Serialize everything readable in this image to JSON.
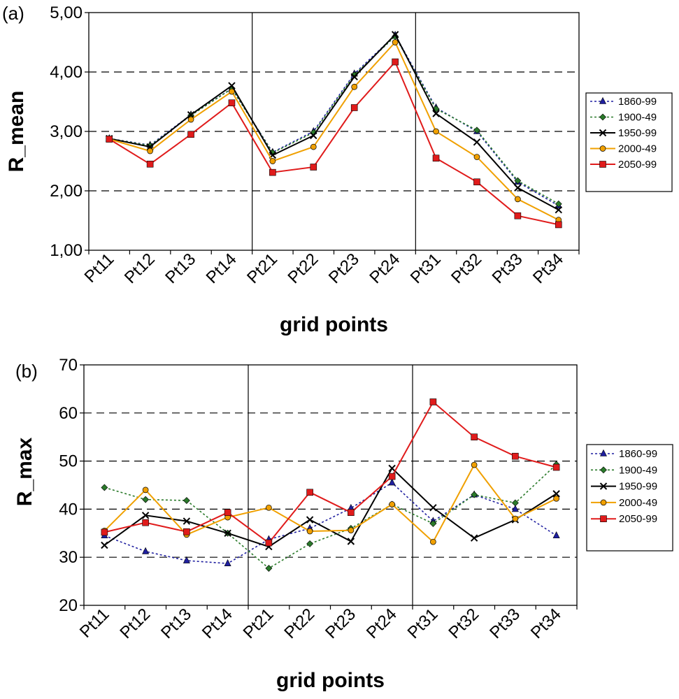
{
  "chart_data": [
    {
      "type": "line",
      "panel_label": "(a)",
      "title": "",
      "xlabel": "grid points",
      "ylabel": "R_mean",
      "ylim": [
        1,
        5
      ],
      "yticks": [
        1,
        2,
        3,
        4,
        5
      ],
      "ytick_labels": [
        "1,00",
        "2,00",
        "3,00",
        "4,00",
        "5,00"
      ],
      "grid": "horizontal dashed",
      "legend_position": "right",
      "categories": [
        "Pt11",
        "Pt12",
        "Pt13",
        "Pt14",
        "Pt21",
        "Pt22",
        "Pt23",
        "Pt24",
        "Pt31",
        "Pt32",
        "Pt33",
        "Pt34"
      ],
      "series": [
        {
          "name": "1860-99",
          "color": "#1f1fa0",
          "dash": "dotted",
          "marker": "triangle",
          "values": [
            2.88,
            2.77,
            3.28,
            3.72,
            2.65,
            3.0,
            3.97,
            4.62,
            3.4,
            3.0,
            2.15,
            1.75
          ]
        },
        {
          "name": "1900-49",
          "color": "#2a7a2a",
          "dash": "dotted",
          "marker": "diamond",
          "values": [
            2.88,
            2.76,
            3.27,
            3.72,
            2.64,
            2.98,
            3.95,
            4.6,
            3.38,
            3.02,
            2.17,
            1.78
          ]
        },
        {
          "name": "1950-99",
          "color": "#000000",
          "dash": "solid",
          "marker": "x",
          "values": [
            2.88,
            2.74,
            3.28,
            3.77,
            2.6,
            2.93,
            3.92,
            4.63,
            3.3,
            2.82,
            2.05,
            1.68
          ]
        },
        {
          "name": "2000-49",
          "color": "#f0a000",
          "dash": "solid",
          "marker": "circle",
          "values": [
            2.87,
            2.67,
            3.2,
            3.67,
            2.5,
            2.74,
            3.75,
            4.5,
            3.0,
            2.57,
            1.86,
            1.51
          ]
        },
        {
          "name": "2050-99",
          "color": "#e01b1b",
          "dash": "solid",
          "marker": "square",
          "values": [
            2.87,
            2.45,
            2.95,
            3.48,
            2.31,
            2.4,
            3.4,
            4.17,
            2.55,
            2.15,
            1.58,
            1.43
          ]
        }
      ]
    },
    {
      "type": "line",
      "panel_label": "(b)",
      "title": "",
      "xlabel": "grid points",
      "ylabel": "R_max",
      "ylim": [
        20,
        70
      ],
      "yticks": [
        20,
        30,
        40,
        50,
        60,
        70
      ],
      "ytick_labels": [
        "20",
        "30",
        "40",
        "50",
        "60",
        "70"
      ],
      "grid": "horizontal dashed",
      "legend_position": "right",
      "categories": [
        "Pt11",
        "Pt12",
        "Pt13",
        "Pt14",
        "Pt21",
        "Pt22",
        "Pt23",
        "Pt24",
        "Pt31",
        "Pt32",
        "Pt33",
        "Pt34"
      ],
      "series": [
        {
          "name": "1860-99",
          "color": "#1f1fa0",
          "dash": "dotted",
          "marker": "triangle",
          "values": [
            34.5,
            31.2,
            29.3,
            28.7,
            33.7,
            36.0,
            40.2,
            45.5,
            37.5,
            43.0,
            40.0,
            34.5
          ]
        },
        {
          "name": "1900-49",
          "color": "#2a7a2a",
          "dash": "dotted",
          "marker": "diamond",
          "values": [
            44.5,
            42.0,
            41.8,
            35.0,
            27.7,
            32.8,
            36.0,
            41.0,
            37.0,
            43.0,
            41.3,
            49.3
          ]
        },
        {
          "name": "1950-99",
          "color": "#000000",
          "dash": "solid",
          "marker": "x",
          "values": [
            32.5,
            38.7,
            37.5,
            35.0,
            32.2,
            37.8,
            33.3,
            48.5,
            40.3,
            34.0,
            37.8,
            43.2
          ]
        },
        {
          "name": "2000-49",
          "color": "#f0a000",
          "dash": "solid",
          "marker": "circle",
          "values": [
            35.5,
            44.0,
            34.7,
            38.3,
            40.3,
            35.4,
            35.6,
            41.0,
            33.2,
            49.2,
            38.0,
            42.2
          ]
        },
        {
          "name": "2050-99",
          "color": "#e01b1b",
          "dash": "solid",
          "marker": "square",
          "values": [
            35.2,
            37.2,
            35.3,
            39.3,
            33.0,
            43.5,
            39.3,
            46.8,
            62.3,
            55.0,
            51.0,
            48.7
          ]
        }
      ]
    }
  ]
}
